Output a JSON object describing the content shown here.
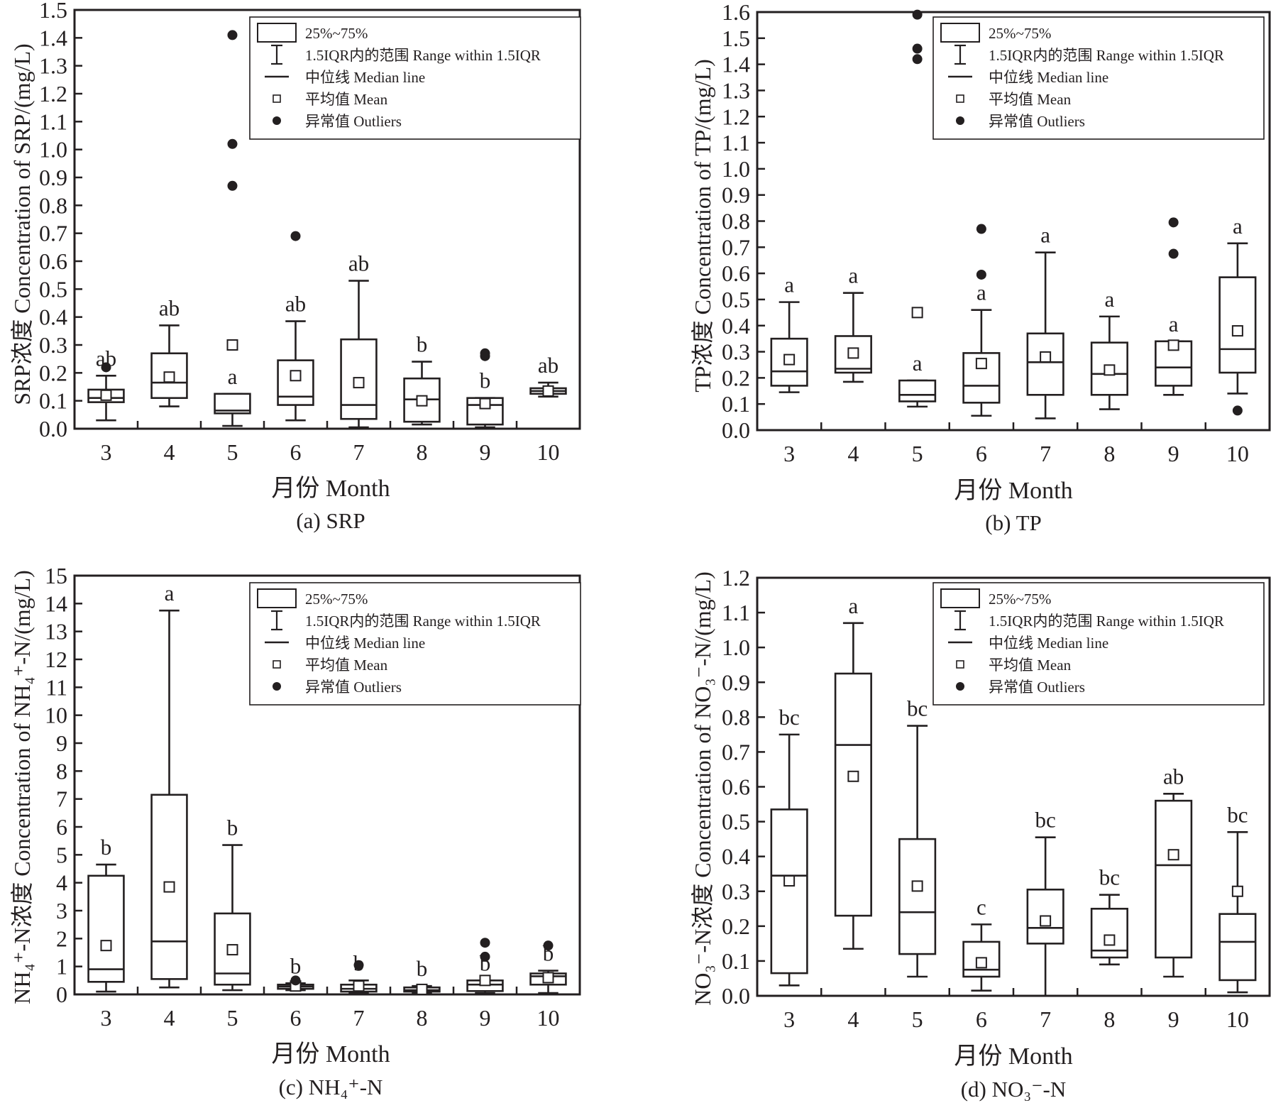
{
  "legend": {
    "box": "25%~75%",
    "whisker": "1.5IQR内的范围 Range within 1.5IQR",
    "median": "中位线 Median line",
    "mean": "平均值 Mean",
    "outliers": "异常值 Outliers"
  },
  "colors": {
    "ink": "#231f20",
    "background": "#ffffff"
  },
  "chart_data": [
    {
      "type": "box",
      "id": "a",
      "caption": "(a) SRP",
      "title": "",
      "xlabel": "月份 Month",
      "ylabel": "SRP浓度 Concentration of SRP/(mg/L)",
      "ylim": [
        0,
        1.5
      ],
      "yticks": [
        0,
        0.1,
        0.2,
        0.3,
        0.4,
        0.5,
        0.6,
        0.7,
        0.8,
        0.9,
        1.0,
        1.1,
        1.2,
        1.3,
        1.4,
        1.5
      ],
      "ytick_decimals": 1,
      "categories": [
        "3",
        "4",
        "5",
        "6",
        "7",
        "8",
        "9",
        "10"
      ],
      "boxes": [
        {
          "month": "3",
          "whisker_low": 0.03,
          "q1": 0.095,
          "median": 0.11,
          "q3": 0.14,
          "whisker_high": 0.19,
          "mean": 0.12,
          "outliers": [
            0.22
          ],
          "letter": "ab"
        },
        {
          "month": "4",
          "whisker_low": 0.08,
          "q1": 0.11,
          "median": 0.165,
          "q3": 0.27,
          "whisker_high": 0.37,
          "mean": 0.185,
          "outliers": [],
          "letter": "ab"
        },
        {
          "month": "5",
          "whisker_low": 0.01,
          "q1": 0.055,
          "median": 0.065,
          "q3": 0.125,
          "whisker_high": 0.125,
          "mean": 0.3,
          "outliers": [
            0.87,
            1.02,
            1.41
          ],
          "letter": "a"
        },
        {
          "month": "6",
          "whisker_low": 0.03,
          "q1": 0.085,
          "median": 0.115,
          "q3": 0.245,
          "whisker_high": 0.385,
          "mean": 0.19,
          "outliers": [
            0.69
          ],
          "letter": "ab"
        },
        {
          "month": "7",
          "whisker_low": 0.005,
          "q1": 0.035,
          "median": 0.085,
          "q3": 0.32,
          "whisker_high": 0.53,
          "mean": 0.165,
          "outliers": [],
          "letter": "ab"
        },
        {
          "month": "8",
          "whisker_low": 0.015,
          "q1": 0.025,
          "median": 0.105,
          "q3": 0.18,
          "whisker_high": 0.24,
          "mean": 0.1,
          "outliers": [],
          "letter": "b"
        },
        {
          "month": "9",
          "whisker_low": 0.005,
          "q1": 0.015,
          "median": 0.085,
          "q3": 0.11,
          "whisker_high": 0.11,
          "mean": 0.09,
          "outliers": [
            0.26,
            0.27
          ],
          "letter": "b"
        },
        {
          "month": "10",
          "whisker_low": 0.115,
          "q1": 0.125,
          "median": 0.135,
          "q3": 0.145,
          "whisker_high": 0.165,
          "mean": 0.135,
          "outliers": [],
          "letter": "ab"
        }
      ]
    },
    {
      "type": "box",
      "id": "b",
      "caption": "(b) TP",
      "title": "",
      "xlabel": "月份 Month",
      "ylabel": "TP浓度 Concentration of TP/(mg/L)",
      "ylim": [
        0,
        1.6
      ],
      "yticks": [
        0,
        0.1,
        0.2,
        0.3,
        0.4,
        0.5,
        0.6,
        0.7,
        0.8,
        0.9,
        1.0,
        1.1,
        1.2,
        1.3,
        1.4,
        1.5,
        1.6
      ],
      "ytick_decimals": 1,
      "categories": [
        "3",
        "4",
        "5",
        "6",
        "7",
        "8",
        "9",
        "10"
      ],
      "boxes": [
        {
          "month": "3",
          "whisker_low": 0.145,
          "q1": 0.17,
          "median": 0.225,
          "q3": 0.35,
          "whisker_high": 0.49,
          "mean": 0.27,
          "outliers": [],
          "letter": "a"
        },
        {
          "month": "4",
          "whisker_low": 0.185,
          "q1": 0.22,
          "median": 0.235,
          "q3": 0.36,
          "whisker_high": 0.525,
          "mean": 0.295,
          "outliers": [],
          "letter": "a"
        },
        {
          "month": "5",
          "whisker_low": 0.09,
          "q1": 0.11,
          "median": 0.135,
          "q3": 0.19,
          "whisker_high": 0.19,
          "mean": 0.45,
          "outliers": [
            1.42,
            1.46,
            1.59
          ],
          "letter": "a"
        },
        {
          "month": "6",
          "whisker_low": 0.055,
          "q1": 0.105,
          "median": 0.17,
          "q3": 0.295,
          "whisker_high": 0.46,
          "mean": 0.255,
          "outliers": [
            0.595,
            0.77
          ],
          "letter": "a"
        },
        {
          "month": "7",
          "whisker_low": 0.045,
          "q1": 0.135,
          "median": 0.26,
          "q3": 0.37,
          "whisker_high": 0.68,
          "mean": 0.28,
          "outliers": [],
          "letter": "a"
        },
        {
          "month": "8",
          "whisker_low": 0.08,
          "q1": 0.135,
          "median": 0.215,
          "q3": 0.335,
          "whisker_high": 0.435,
          "mean": 0.23,
          "outliers": [],
          "letter": "a"
        },
        {
          "month": "9",
          "whisker_low": 0.135,
          "q1": 0.17,
          "median": 0.24,
          "q3": 0.34,
          "whisker_high": 0.34,
          "mean": 0.325,
          "outliers": [
            0.675,
            0.795
          ],
          "letter": "a"
        },
        {
          "month": "10",
          "whisker_low": 0.14,
          "q1": 0.22,
          "median": 0.31,
          "q3": 0.585,
          "whisker_high": 0.715,
          "mean": 0.38,
          "outliers": [
            0.075
          ],
          "letter": "a"
        }
      ]
    },
    {
      "type": "box",
      "id": "c",
      "caption": "(c) NH₄⁺-N",
      "title": "",
      "xlabel": "月份 Month",
      "ylabel": "NH₄⁺-N浓度 Concentration of NH₄⁺-N/(mg/L)",
      "ylim": [
        0,
        15
      ],
      "yticks": [
        0,
        1,
        2,
        3,
        4,
        5,
        6,
        7,
        8,
        9,
        10,
        11,
        12,
        13,
        14,
        15
      ],
      "ytick_decimals": 0,
      "categories": [
        "3",
        "4",
        "5",
        "6",
        "7",
        "8",
        "9",
        "10"
      ],
      "boxes": [
        {
          "month": "3",
          "whisker_low": 0.1,
          "q1": 0.45,
          "median": 0.9,
          "q3": 4.25,
          "whisker_high": 4.65,
          "mean": 1.75,
          "outliers": [],
          "letter": "b"
        },
        {
          "month": "4",
          "whisker_low": 0.25,
          "q1": 0.55,
          "median": 1.9,
          "q3": 7.15,
          "whisker_high": 13.75,
          "mean": 3.85,
          "outliers": [],
          "letter": "a"
        },
        {
          "month": "5",
          "whisker_low": 0.15,
          "q1": 0.35,
          "median": 0.75,
          "q3": 2.9,
          "whisker_high": 5.35,
          "mean": 1.6,
          "outliers": [],
          "letter": "b"
        },
        {
          "month": "6",
          "whisker_low": 0.15,
          "q1": 0.2,
          "median": 0.28,
          "q3": 0.35,
          "whisker_high": 0.4,
          "mean": 0.3,
          "outliers": [
            0.5
          ],
          "letter": "b"
        },
        {
          "month": "7",
          "whisker_low": 0.05,
          "q1": 0.1,
          "median": 0.2,
          "q3": 0.35,
          "whisker_high": 0.5,
          "mean": 0.3,
          "outliers": [
            1.05
          ],
          "letter": "b"
        },
        {
          "month": "8",
          "whisker_low": 0.05,
          "q1": 0.1,
          "median": 0.15,
          "q3": 0.25,
          "whisker_high": 0.3,
          "mean": 0.18,
          "outliers": [],
          "letter": "b"
        },
        {
          "month": "9",
          "whisker_low": 0.05,
          "q1": 0.12,
          "median": 0.35,
          "q3": 0.5,
          "whisker_high": 0.5,
          "mean": 0.5,
          "outliers": [
            1.35,
            1.85
          ],
          "letter": "b"
        },
        {
          "month": "10",
          "whisker_low": 0.05,
          "q1": 0.35,
          "median": 0.65,
          "q3": 0.75,
          "whisker_high": 0.85,
          "mean": 0.6,
          "outliers": [
            1.75
          ],
          "letter": "b"
        }
      ]
    },
    {
      "type": "box",
      "id": "d",
      "caption": "(d) NO₃⁻-N",
      "title": "",
      "xlabel": "月份 Month",
      "ylabel": "NO₃⁻-N浓度 Concentration of NO₃⁻-N/(mg/L)",
      "ylim": [
        0,
        1.2
      ],
      "yticks": [
        0,
        0.1,
        0.2,
        0.3,
        0.4,
        0.5,
        0.6,
        0.7,
        0.8,
        0.9,
        1.0,
        1.1,
        1.2
      ],
      "ytick_decimals": 1,
      "categories": [
        "3",
        "4",
        "5",
        "6",
        "7",
        "8",
        "9",
        "10"
      ],
      "boxes": [
        {
          "month": "3",
          "whisker_low": 0.03,
          "q1": 0.065,
          "median": 0.345,
          "q3": 0.535,
          "whisker_high": 0.75,
          "mean": 0.33,
          "outliers": [],
          "letter": "bc"
        },
        {
          "month": "4",
          "whisker_low": 0.135,
          "q1": 0.23,
          "median": 0.72,
          "q3": 0.925,
          "whisker_high": 1.07,
          "mean": 0.63,
          "outliers": [],
          "letter": "a"
        },
        {
          "month": "5",
          "whisker_low": 0.055,
          "q1": 0.12,
          "median": 0.24,
          "q3": 0.45,
          "whisker_high": 0.775,
          "mean": 0.315,
          "outliers": [],
          "letter": "bc"
        },
        {
          "month": "6",
          "whisker_low": 0.015,
          "q1": 0.055,
          "median": 0.075,
          "q3": 0.155,
          "whisker_high": 0.205,
          "mean": 0.095,
          "outliers": [],
          "letter": "c"
        },
        {
          "month": "7",
          "whisker_low": 0.0,
          "q1": 0.15,
          "median": 0.195,
          "q3": 0.305,
          "whisker_high": 0.455,
          "mean": 0.215,
          "outliers": [],
          "letter": "bc"
        },
        {
          "month": "8",
          "whisker_low": 0.09,
          "q1": 0.11,
          "median": 0.13,
          "q3": 0.25,
          "whisker_high": 0.29,
          "mean": 0.16,
          "outliers": [],
          "letter": "bc"
        },
        {
          "month": "9",
          "whisker_low": 0.055,
          "q1": 0.11,
          "median": 0.375,
          "q3": 0.56,
          "whisker_high": 0.58,
          "mean": 0.405,
          "outliers": [],
          "letter": "ab"
        },
        {
          "month": "10",
          "whisker_low": 0.01,
          "q1": 0.045,
          "median": 0.155,
          "q3": 0.235,
          "whisker_high": 0.47,
          "mean": 0.3,
          "outliers": [],
          "letter": "bc"
        }
      ]
    }
  ]
}
